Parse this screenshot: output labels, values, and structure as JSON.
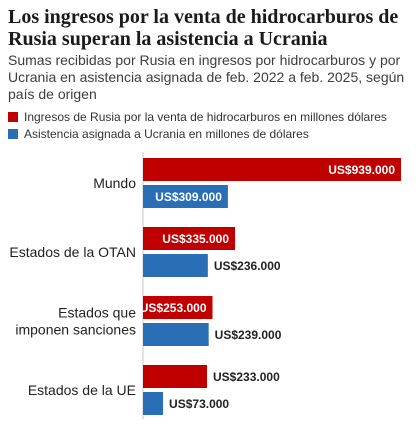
{
  "title": "Los ingresos por la venta de hidrocarburos de Rusia superan la asistencia a Ucrania",
  "subtitle": "Sumas recibidas por Rusia en ingresos por hidrocarburos y por Ucrania en asistencia asignada de feb. 2022 a feb. 2025, según país de origen",
  "colors": {
    "russia": "#c00000",
    "ukraine": "#2a6fb5",
    "grid": "#c8c8c8"
  },
  "chart_data": {
    "type": "bar",
    "orientation": "horizontal",
    "categories": [
      "Mundo",
      "Estados de la OTAN",
      "Estados que imponen sanciones",
      "Estados de la UE"
    ],
    "category_lines": [
      [
        "Mundo"
      ],
      [
        "Estados de la OTAN"
      ],
      [
        "Estados que",
        "imponen sanciones"
      ],
      [
        "Estados de la UE"
      ]
    ],
    "series": [
      {
        "name": "Ingresos de Rusia por la venta de hidrocarburos en millones dólares",
        "color": "#c00000",
        "values": [
          939000,
          335000,
          253000,
          233000
        ],
        "labels": [
          "US$939.000",
          "US$335.000",
          "US$253.000",
          "US$233.000"
        ]
      },
      {
        "name": "Asistencia asignada a Ucrania en millones de dólares",
        "color": "#2a6fb5",
        "values": [
          309000,
          236000,
          239000,
          73000
        ],
        "labels": [
          "US$309.000",
          "US$236.000",
          "US$239.000",
          "US$73.000"
        ]
      }
    ],
    "label_inside": [
      [
        true,
        true,
        true,
        false
      ],
      [
        true,
        false,
        false,
        false
      ]
    ],
    "xlim": [
      0,
      939000
    ],
    "legend_position": "top",
    "grid": false
  }
}
